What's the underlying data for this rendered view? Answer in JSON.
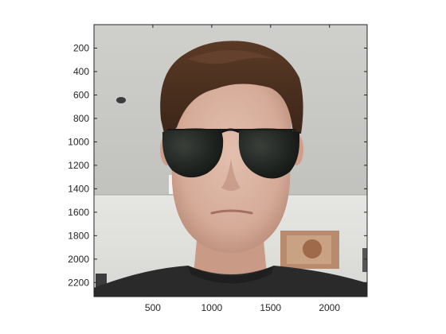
{
  "figure": {
    "x_axis": {
      "range": [
        0,
        2320
      ],
      "tick_values": [
        500,
        1000,
        1500,
        2000
      ],
      "tick_labels": [
        "500",
        "1000",
        "1500",
        "2000"
      ]
    },
    "y_axis": {
      "range": [
        0,
        2320
      ],
      "reversed": true,
      "tick_values": [
        200,
        400,
        600,
        800,
        1000,
        1200,
        1400,
        1600,
        1800,
        2000,
        2200
      ],
      "tick_labels": [
        "200",
        "400",
        "600",
        "800",
        "1000",
        "1200",
        "1400",
        "1600",
        "1800",
        "2000",
        "2200"
      ]
    },
    "image_subject": "photo-of-person-wearing-sunglasses"
  }
}
